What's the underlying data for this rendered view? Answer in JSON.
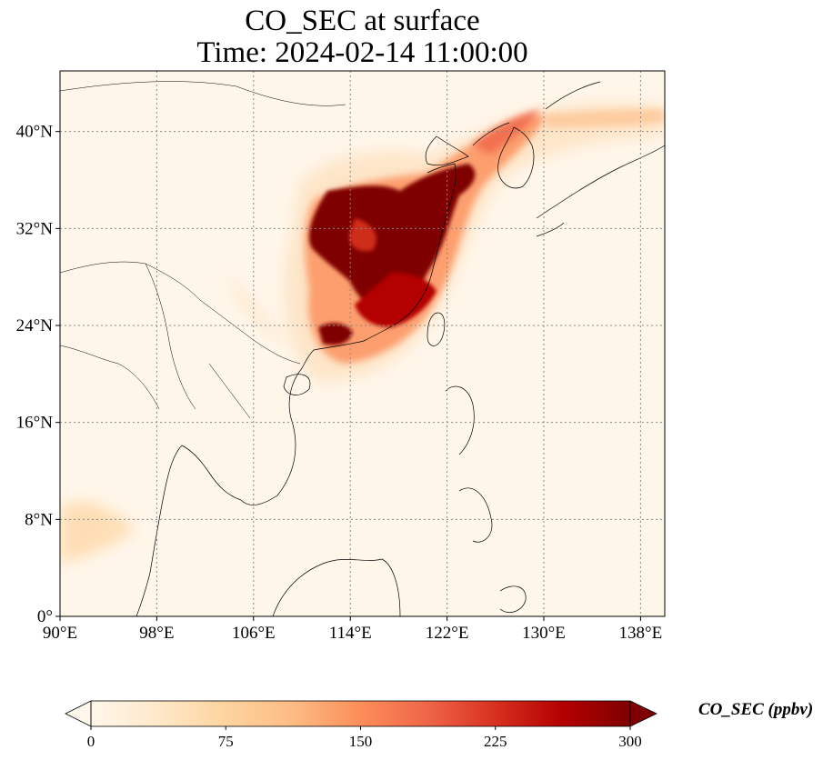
{
  "title": {
    "line1": "CO_SEC at surface",
    "line2": "Time: 2024-02-14 11:00:00"
  },
  "map": {
    "lon_range": [
      90,
      140
    ],
    "lat_range": [
      0,
      45
    ],
    "lon_ticks": [
      {
        "value": 90,
        "label": "90°E"
      },
      {
        "value": 98,
        "label": "98°E"
      },
      {
        "value": 106,
        "label": "106°E"
      },
      {
        "value": 114,
        "label": "114°E"
      },
      {
        "value": 122,
        "label": "122°E"
      },
      {
        "value": 130,
        "label": "130°E"
      },
      {
        "value": 138,
        "label": "138°E"
      }
    ],
    "lat_ticks": [
      {
        "value": 0,
        "label": "0°"
      },
      {
        "value": 8,
        "label": "8°N"
      },
      {
        "value": 16,
        "label": "16°N"
      },
      {
        "value": 24,
        "label": "24°N"
      },
      {
        "value": 32,
        "label": "32°N"
      },
      {
        "value": 40,
        "label": "40°N"
      }
    ],
    "gridlines": true,
    "colormap": "OrRd"
  },
  "colorbar": {
    "label": "CO_SEC (ppbv)",
    "ticks": [
      "0",
      "75",
      "150",
      "225",
      "300"
    ],
    "min": 0,
    "max": 300,
    "extend": "both",
    "colors": [
      "#fff7ec",
      "#fee8c8",
      "#fdd49e",
      "#fdbb84",
      "#fc8d59",
      "#ef6548",
      "#d7301f",
      "#b30000",
      "#7f0000"
    ]
  }
}
